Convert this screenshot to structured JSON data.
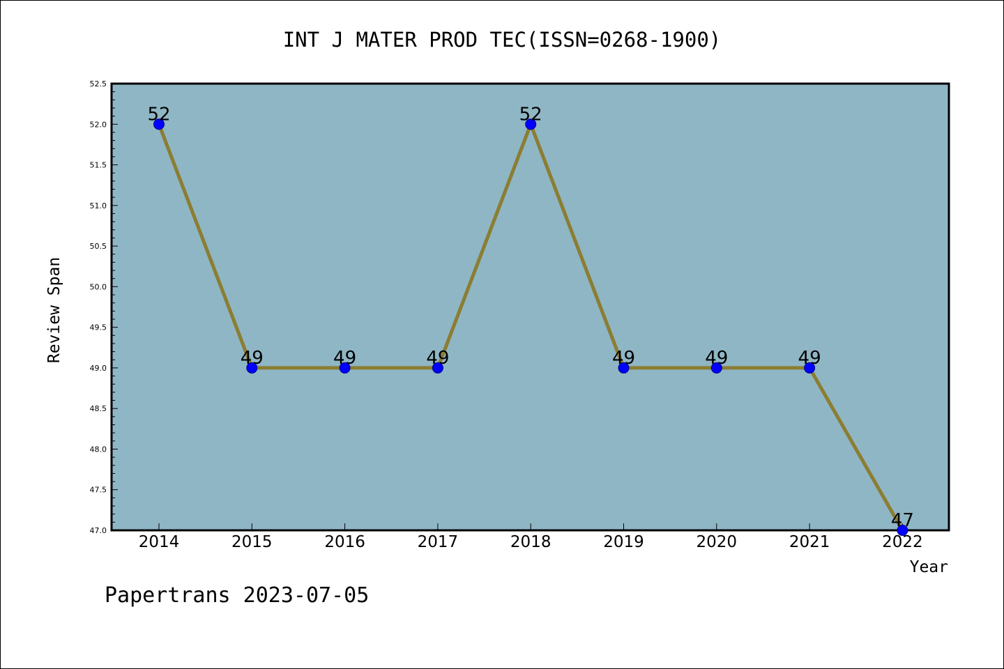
{
  "footer": {
    "text": "Papertrans 2023-07-05"
  },
  "colors": {
    "plot_background": "#8fb6c5",
    "line": "#8b7d32",
    "marker": "#0000ff",
    "marker_edge": "#00008b",
    "axes": "#000000"
  },
  "chart_data": {
    "type": "line",
    "title": "INT J MATER PROD TEC(ISSN=0268-1900)",
    "xlabel": "Year",
    "ylabel": "Review Span",
    "categories": [
      "2014",
      "2015",
      "2016",
      "2017",
      "2018",
      "2019",
      "2020",
      "2021",
      "2022"
    ],
    "series": [
      {
        "values": [
          52,
          49,
          49,
          49,
          52,
          49,
          49,
          49,
          47
        ]
      }
    ],
    "data_labels": [
      "52",
      "49",
      "49",
      "49",
      "52",
      "49",
      "49",
      "49",
      "47"
    ],
    "ylim": [
      47.0,
      52.5
    ],
    "yticks": [
      "47.0",
      "47.5",
      "48.0",
      "48.5",
      "49.0",
      "49.5",
      "50.0",
      "50.5",
      "51.0",
      "51.5",
      "52.0",
      "52.5"
    ],
    "grid": false,
    "legend": "none"
  }
}
